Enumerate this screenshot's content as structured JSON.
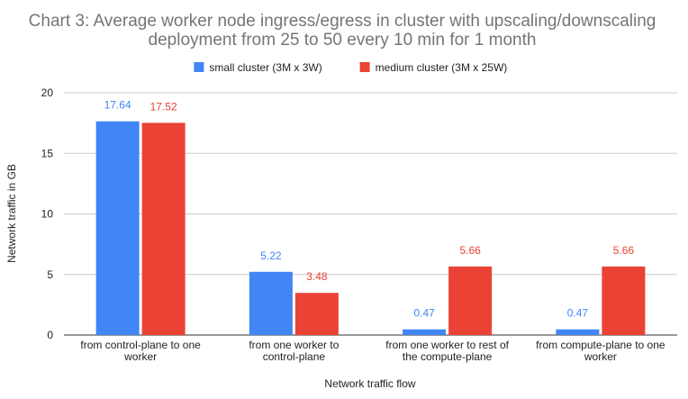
{
  "chart_data": {
    "type": "bar",
    "title_lines": [
      "Chart 3: Average worker node ingress/egress in cluster with upscaling/downscaling",
      "deployment from 25 to 50 every 10 min for 1 month"
    ],
    "xlabel": "Network traffic flow",
    "ylabel": "Network traffic in GB",
    "ylim": [
      0,
      20
    ],
    "yticks": [
      0,
      5,
      10,
      15,
      20
    ],
    "grid": true,
    "legend_position": "top",
    "categories": [
      [
        "from control-plane to one",
        "worker"
      ],
      [
        "from one worker to",
        "control-plane"
      ],
      [
        "from one worker to rest of",
        "the compute-plane"
      ],
      [
        "from compute-plane to one",
        "worker"
      ]
    ],
    "series": [
      {
        "name": "small cluster (3M x 3W)",
        "color": "#4285f4",
        "values": [
          17.64,
          5.22,
          0.47,
          0.47
        ]
      },
      {
        "name": "medium cluster (3M x 25W)",
        "color": "#ea4335",
        "values": [
          17.52,
          3.48,
          5.66,
          5.66
        ]
      }
    ]
  }
}
